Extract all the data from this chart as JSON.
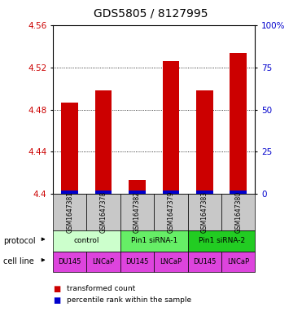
{
  "title": "GDS5805 / 8127995",
  "samples": [
    "GSM1647381",
    "GSM1647378",
    "GSM1647382",
    "GSM1647379",
    "GSM1647383",
    "GSM1647380"
  ],
  "red_values": [
    4.487,
    4.498,
    4.413,
    4.526,
    4.498,
    4.534
  ],
  "blue_percentiles": [
    2,
    2,
    2,
    2,
    2,
    2
  ],
  "ylim_left": [
    4.4,
    4.56
  ],
  "ylim_right": [
    0,
    100
  ],
  "yticks_left": [
    4.4,
    4.44,
    4.48,
    4.52,
    4.56
  ],
  "yticks_right": [
    0,
    25,
    50,
    75,
    100
  ],
  "ytick_labels_left": [
    "4.4",
    "4.44",
    "4.48",
    "4.52",
    "4.56"
  ],
  "ytick_labels_right": [
    "0",
    "25",
    "50",
    "75",
    "100%"
  ],
  "red_color": "#cc0000",
  "blue_color": "#0000cc",
  "bar_width": 0.5,
  "protocol_groups": [
    {
      "label": "control",
      "start": 0,
      "end": 2,
      "color": "#ccffcc"
    },
    {
      "label": "Pin1 siRNA-1",
      "start": 2,
      "end": 4,
      "color": "#66ee66"
    },
    {
      "label": "Pin1 siRNA-2",
      "start": 4,
      "end": 6,
      "color": "#22cc22"
    }
  ],
  "cell_line_labels": [
    "DU145",
    "LNCaP",
    "DU145",
    "LNCaP",
    "DU145",
    "LNCaP"
  ],
  "cell_line_color": "#dd44dd",
  "legend_red": "transformed count",
  "legend_blue": "percentile rank within the sample",
  "title_fontsize": 10,
  "axis_color_left": "#cc0000",
  "axis_color_right": "#0000cc",
  "background_color": "#ffffff",
  "sample_box_color": "#c8c8c8"
}
